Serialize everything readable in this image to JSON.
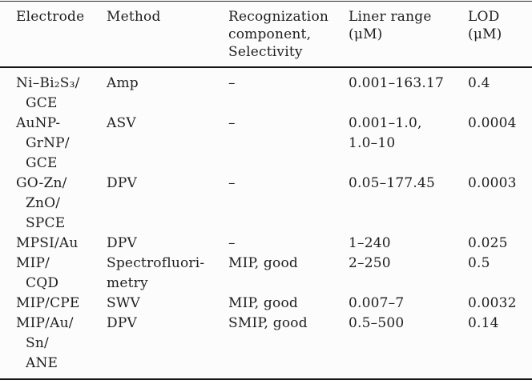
{
  "page": {
    "background_color": "#fcfcfc",
    "text_color": "#1e1e1e",
    "rule_color": "#151515"
  },
  "table": {
    "columns": [
      {
        "label": "Electrode"
      },
      {
        "label": "Method"
      },
      {
        "label": "Recognization\ncomponent,\nSelectivity"
      },
      {
        "label": "Liner range\n(μM)"
      },
      {
        "label": "LOD\n(μM)"
      }
    ],
    "rows": [
      {
        "electrode": "Ni–Bi₂S₃/\nGCE",
        "method": "Amp",
        "recognition": "–",
        "range": "0.001–163.17",
        "lod": "0.4"
      },
      {
        "electrode": "AuNP-\nGrNP/\nGCE",
        "method": "ASV",
        "recognition": "–",
        "range": "0.001–1.0,\n1.0–10",
        "lod": "0.0004"
      },
      {
        "electrode": "GO-Zn/\nZnO/\nSPCE",
        "method": "DPV",
        "recognition": "–",
        "range": "0.05–177.45",
        "lod": "0.0003"
      },
      {
        "electrode": "MPSI/Au",
        "method": "DPV",
        "recognition": "–",
        "range": "1–240",
        "lod": "0.025"
      },
      {
        "electrode": "MIP/\nCQD",
        "method": "Spectrofluori-\nmetry",
        "recognition": "MIP, good",
        "range": "2–250",
        "lod": "0.5"
      },
      {
        "electrode": "MIP/CPE",
        "method": "SWV",
        "recognition": "MIP, good",
        "range": "0.007–7",
        "lod": "0.0032"
      },
      {
        "electrode": "MIP/Au/\nSn/\nANE",
        "method": "DPV",
        "recognition": "SMIP, good",
        "range": "0.5–500",
        "lod": "0.14"
      }
    ]
  }
}
